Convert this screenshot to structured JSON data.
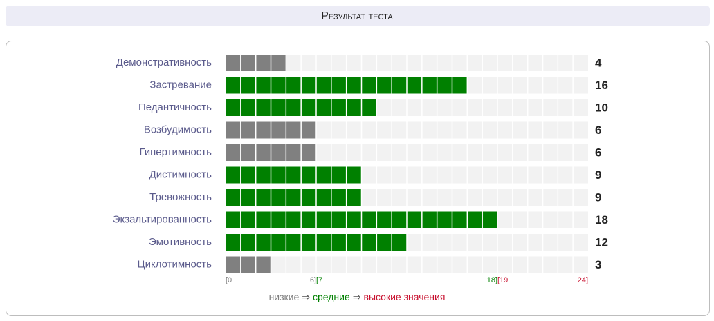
{
  "header": {
    "title": "Результат теста"
  },
  "chart_data": {
    "type": "hbar",
    "categories": [
      "Демонстративность",
      "Застревание",
      "Педантичность",
      "Возбудимость",
      "Гипертимность",
      "Дистимность",
      "Тревожность",
      "Экзальтированность",
      "Эмотивность",
      "Циклотимность"
    ],
    "values": [
      4,
      16,
      10,
      6,
      6,
      9,
      9,
      18,
      12,
      3
    ],
    "xlim": [
      0,
      24
    ],
    "xticks": [
      {
        "value": 0,
        "label": "[0"
      },
      {
        "value": 6,
        "label": "6][7"
      },
      {
        "value": 18,
        "label": "18][19"
      },
      {
        "value": 24,
        "label": "24]"
      }
    ],
    "zones": [
      {
        "name": "низкие",
        "color": "#808080"
      },
      {
        "name": "средние",
        "color": "#008000"
      },
      {
        "name": "высокие значения",
        "color": "#c8102e"
      }
    ],
    "legend_separator": "⇒",
    "track_color": "#f2f2f2"
  }
}
